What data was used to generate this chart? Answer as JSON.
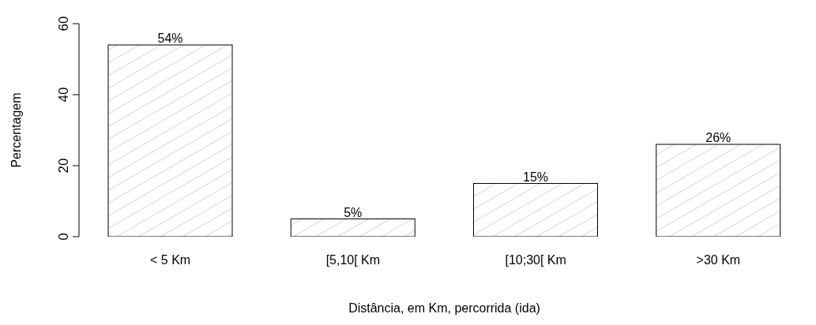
{
  "chart_data": {
    "type": "bar",
    "xlabel": "Distância, em Km, percorrida (ida)",
    "ylabel": "Percentagem",
    "categories": [
      "< 5 Km",
      "[5,10[ Km",
      "[10;30[ Km",
      ">30 Km"
    ],
    "values": [
      54,
      5,
      15,
      26
    ],
    "value_labels": [
      "54%",
      "5%",
      "15%",
      "26%"
    ],
    "color": "#ffffff",
    "ylim": [
      0,
      60
    ],
    "yticks": [
      0,
      20,
      40,
      60
    ]
  }
}
